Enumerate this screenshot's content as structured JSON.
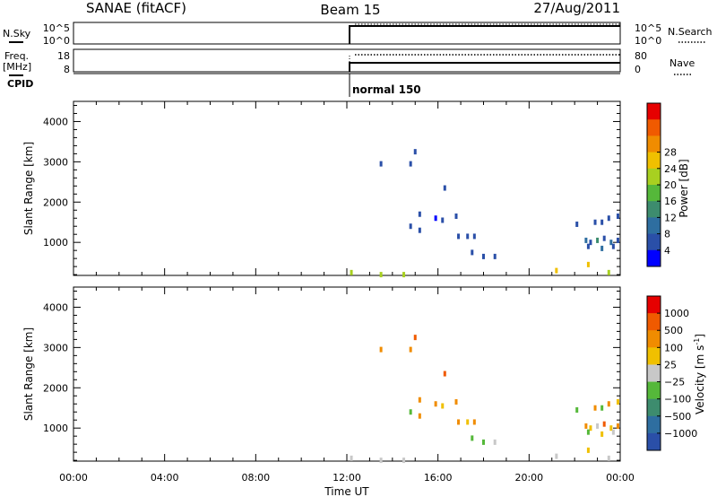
{
  "header": {
    "station": "SANAE (fitACF)",
    "beam": "Beam 15",
    "date": "27/Aug/2011"
  },
  "top_panels": {
    "nsky_label": "N.Sky",
    "nsky_ticks": [
      "10^5",
      "10^0"
    ],
    "nsearch_label": "N.Search",
    "nsearch_ticks": [
      "10^5",
      "10^0"
    ],
    "freq_label": "Freq.",
    "freq_unit": "[MHz]",
    "freq_ticks": [
      "18",
      "8"
    ],
    "nave_label": "Nave",
    "nave_ticks": [
      "80",
      "0"
    ],
    "cpid_label": "CPID",
    "cpid_value": "normal 150"
  },
  "colors": {
    "power": [
      "#0000ff",
      "#2a4fa8",
      "#2e6ea0",
      "#3d8c6e",
      "#55b83a",
      "#a8d020",
      "#f0c000",
      "#f08c00",
      "#f05a00",
      "#e60000"
    ],
    "velocity": [
      "#e60000",
      "#f05a00",
      "#f08c00",
      "#f0c000",
      "#c8c8c8",
      "#55b83a",
      "#3d8c6e",
      "#2e6ea0",
      "#2a4fa8"
    ]
  },
  "chart_data": [
    {
      "type": "scatter",
      "panel": "power",
      "ylabel": "Slant Range [km]",
      "xlim_hours": [
        0,
        24
      ],
      "ylim": [
        180,
        4500
      ],
      "yticks": [
        "1000",
        "2000",
        "3000",
        "4000"
      ],
      "colorbar_label": "Power [dB]",
      "colorbar_ticks": [
        "4",
        "8",
        "12",
        "16",
        "20",
        "24",
        "28"
      ],
      "points": [
        [
          13.5,
          2950,
          1
        ],
        [
          14.8,
          2950,
          1
        ],
        [
          15.0,
          3250,
          1
        ],
        [
          16.3,
          2350,
          1
        ],
        [
          15.2,
          1700,
          1
        ],
        [
          15.9,
          1600,
          0
        ],
        [
          16.2,
          1550,
          1
        ],
        [
          16.8,
          1650,
          1
        ],
        [
          14.8,
          1400,
          1
        ],
        [
          15.2,
          1300,
          1
        ],
        [
          16.9,
          1150,
          1
        ],
        [
          17.3,
          1150,
          1
        ],
        [
          17.6,
          1150,
          1
        ],
        [
          17.5,
          750,
          1
        ],
        [
          18.0,
          650,
          1
        ],
        [
          18.5,
          650,
          1
        ],
        [
          22.1,
          1450,
          1
        ],
        [
          22.9,
          1500,
          1
        ],
        [
          23.2,
          1500,
          1
        ],
        [
          23.5,
          1600,
          1
        ],
        [
          23.9,
          1650,
          1
        ],
        [
          22.5,
          1050,
          2
        ],
        [
          22.7,
          1000,
          1
        ],
        [
          23.0,
          1050,
          3
        ],
        [
          23.3,
          1100,
          1
        ],
        [
          23.6,
          1000,
          2
        ],
        [
          23.9,
          1050,
          1
        ],
        [
          22.6,
          900,
          1
        ],
        [
          23.2,
          850,
          2
        ],
        [
          23.7,
          900,
          1
        ],
        [
          12.2,
          250,
          5
        ],
        [
          13.5,
          200,
          5
        ],
        [
          14.5,
          200,
          5
        ],
        [
          21.2,
          300,
          6
        ],
        [
          22.6,
          450,
          6
        ],
        [
          23.5,
          250,
          5
        ]
      ]
    },
    {
      "type": "scatter",
      "panel": "velocity",
      "ylabel": "Slant Range [km]",
      "xlabel": "Time UT",
      "xlim_hours": [
        0,
        24
      ],
      "ylim": [
        180,
        4500
      ],
      "yticks": [
        "1000",
        "2000",
        "3000",
        "4000"
      ],
      "xticks": [
        "00:00",
        "04:00",
        "08:00",
        "12:00",
        "16:00",
        "20:00",
        "00:00"
      ],
      "colorbar_label": "Velocity [m s",
      "colorbar_unit_sup": "-1",
      "colorbar_ticks": [
        "1000",
        "500",
        "100",
        "25",
        "−25",
        "−100",
        "−500",
        "−1000"
      ],
      "points": [
        [
          13.5,
          2950,
          2
        ],
        [
          14.8,
          2950,
          2
        ],
        [
          15.0,
          3250,
          1
        ],
        [
          16.3,
          2350,
          1
        ],
        [
          15.2,
          1700,
          2
        ],
        [
          15.9,
          1600,
          2
        ],
        [
          16.2,
          1550,
          3
        ],
        [
          16.8,
          1650,
          2
        ],
        [
          14.8,
          1400,
          5
        ],
        [
          15.2,
          1300,
          2
        ],
        [
          16.9,
          1150,
          2
        ],
        [
          17.3,
          1150,
          3
        ],
        [
          17.6,
          1150,
          2
        ],
        [
          17.5,
          750,
          5
        ],
        [
          18.0,
          650,
          5
        ],
        [
          18.5,
          650,
          4
        ],
        [
          22.1,
          1450,
          5
        ],
        [
          22.9,
          1500,
          2
        ],
        [
          23.2,
          1500,
          5
        ],
        [
          23.5,
          1600,
          2
        ],
        [
          23.9,
          1650,
          3
        ],
        [
          22.5,
          1050,
          2
        ],
        [
          22.7,
          1000,
          3
        ],
        [
          23.0,
          1050,
          4
        ],
        [
          23.3,
          1100,
          1
        ],
        [
          23.6,
          1000,
          3
        ],
        [
          23.9,
          1050,
          2
        ],
        [
          22.6,
          900,
          5
        ],
        [
          23.2,
          850,
          3
        ],
        [
          23.7,
          900,
          4
        ],
        [
          12.2,
          250,
          4
        ],
        [
          13.5,
          200,
          4
        ],
        [
          14.5,
          200,
          4
        ],
        [
          21.2,
          300,
          4
        ],
        [
          22.6,
          450,
          3
        ],
        [
          23.5,
          250,
          4
        ]
      ]
    }
  ]
}
